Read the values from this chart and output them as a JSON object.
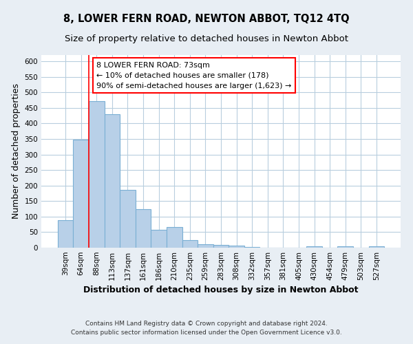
{
  "title": "8, LOWER FERN ROAD, NEWTON ABBOT, TQ12 4TQ",
  "subtitle": "Size of property relative to detached houses in Newton Abbot",
  "xlabel": "Distribution of detached houses by size in Newton Abbot",
  "ylabel": "Number of detached properties",
  "categories": [
    "39sqm",
    "64sqm",
    "88sqm",
    "113sqm",
    "137sqm",
    "161sqm",
    "186sqm",
    "210sqm",
    "235sqm",
    "259sqm",
    "283sqm",
    "308sqm",
    "332sqm",
    "357sqm",
    "381sqm",
    "405sqm",
    "430sqm",
    "454sqm",
    "479sqm",
    "503sqm",
    "527sqm"
  ],
  "values": [
    88,
    348,
    472,
    430,
    185,
    123,
    57,
    67,
    25,
    12,
    8,
    7,
    3,
    1,
    0,
    1,
    4,
    0,
    5,
    0,
    4
  ],
  "bar_color": "#b8d0e8",
  "bar_edge_color": "#7aafd4",
  "red_line_x": 1.5,
  "annotation_line1": "8 LOWER FERN ROAD: 73sqm",
  "annotation_line2": "← 10% of detached houses are smaller (178)",
  "annotation_line3": "90% of semi-detached houses are larger (1,623) →",
  "annotation_box_color": "white",
  "annotation_box_edge_color": "red",
  "ylim": [
    0,
    620
  ],
  "yticks": [
    0,
    50,
    100,
    150,
    200,
    250,
    300,
    350,
    400,
    450,
    500,
    550,
    600
  ],
  "footer_line1": "Contains HM Land Registry data © Crown copyright and database right 2024.",
  "footer_line2": "Contains public sector information licensed under the Open Government Licence v3.0.",
  "bg_color": "#e8eef4",
  "plot_bg_color": "#ffffff",
  "grid_color": "#b8cede",
  "title_fontsize": 10.5,
  "subtitle_fontsize": 9.5,
  "axis_label_fontsize": 9,
  "tick_fontsize": 7.5,
  "annotation_fontsize": 8,
  "footer_fontsize": 6.5
}
